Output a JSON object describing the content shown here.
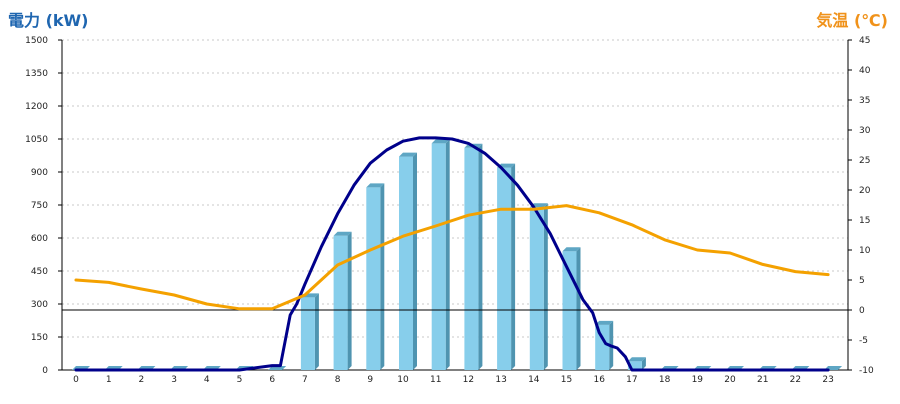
{
  "chart_data": {
    "type": "bar",
    "left_title": "電力 (kW)",
    "right_title": "気温 (℃)",
    "categories": [
      "0",
      "1",
      "2",
      "3",
      "4",
      "5",
      "6",
      "7",
      "8",
      "9",
      "10",
      "11",
      "12",
      "13",
      "14",
      "15",
      "16",
      "17",
      "18",
      "19",
      "20",
      "21",
      "22",
      "23"
    ],
    "left_axis": {
      "ylim": [
        0,
        1500
      ],
      "ticks": [
        0,
        150,
        300,
        450,
        600,
        750,
        900,
        1050,
        1200,
        1350,
        1500
      ]
    },
    "right_axis": {
      "ylim": [
        -10,
        45
      ],
      "ticks": [
        -10,
        -5,
        0,
        5,
        10,
        15,
        20,
        25,
        30,
        35,
        40,
        45
      ]
    },
    "grid": true,
    "series": [
      {
        "kind": "bar",
        "axis": "left",
        "color": "#87ceeb",
        "values": [
          0,
          0,
          0,
          0,
          0,
          0,
          0,
          330,
          610,
          830,
          970,
          1030,
          1010,
          920,
          740,
          540,
          205,
          40,
          0,
          0,
          0,
          0,
          0,
          0
        ]
      },
      {
        "kind": "line",
        "axis": "left",
        "color": "#00008b",
        "x": [
          0,
          1,
          2,
          3,
          4,
          5,
          6,
          6.25,
          6.55,
          6.75,
          7,
          7.5,
          8,
          8.5,
          9,
          9.5,
          10,
          10.5,
          11,
          11.5,
          12,
          12.5,
          13,
          13.5,
          14,
          14.5,
          15,
          15.5,
          15.8,
          16,
          16.2,
          16.35,
          16.55,
          16.8,
          17,
          17.3,
          18,
          19,
          20,
          21,
          22,
          23
        ],
        "values": [
          0,
          0,
          0,
          0,
          0,
          0,
          20,
          20,
          250,
          300,
          390,
          560,
          710,
          840,
          940,
          1000,
          1040,
          1055,
          1055,
          1050,
          1030,
          985,
          920,
          840,
          740,
          620,
          470,
          320,
          260,
          170,
          120,
          110,
          100,
          60,
          0,
          0,
          0,
          0,
          0,
          0,
          0,
          0
        ]
      },
      {
        "kind": "line",
        "axis": "right",
        "color": "#f4a100",
        "x": [
          0,
          1,
          2,
          3,
          4,
          5,
          6,
          7,
          8,
          9,
          10,
          11,
          12,
          13,
          14,
          15,
          16,
          17,
          18,
          19,
          20,
          21,
          22,
          23
        ],
        "values": [
          5,
          4.6,
          3.5,
          2.5,
          1,
          0.2,
          0.2,
          2.5,
          7.5,
          10,
          12.3,
          14,
          15.8,
          16.8,
          16.8,
          17.4,
          16.2,
          14.2,
          11.7,
          10,
          9.5,
          7.6,
          6.4,
          5.9
        ]
      }
    ],
    "reference_line": {
      "axis": "right",
      "value": 0,
      "color": "#000000"
    }
  }
}
